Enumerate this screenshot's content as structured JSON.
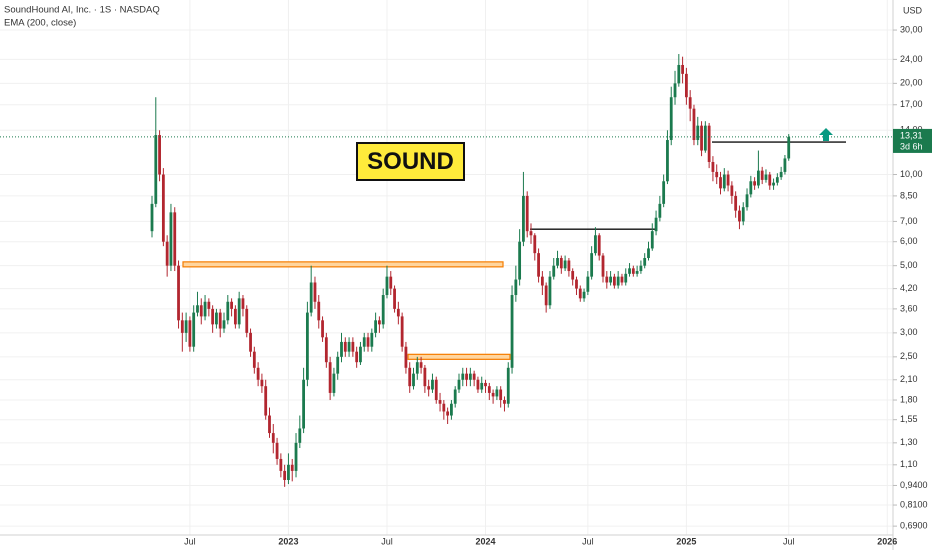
{
  "chart_data": {
    "type": "candlestick",
    "title": "SoundHound AI, Inc. · 1S · NASDAQ",
    "indicator": "EMA (200, close)",
    "currency": "USD",
    "badge": "SOUND",
    "log_scale": true,
    "grid": true,
    "up_color": "#1b7a4e",
    "down_color": "#b2262f",
    "categories": [
      null,
      null,
      null,
      null,
      null,
      null,
      null,
      null,
      null,
      null,
      "Jul",
      null,
      null,
      null,
      null,
      null,
      null,
      null,
      null,
      null,
      null,
      null,
      null,
      null,
      null,
      null,
      null,
      null,
      null,
      null,
      null,
      null,
      null,
      null,
      null,
      null,
      "2023",
      null,
      null,
      null,
      null,
      null,
      null,
      null,
      null,
      null,
      null,
      null,
      null,
      null,
      null,
      null,
      null,
      null,
      null,
      null,
      null,
      null,
      null,
      null,
      null,
      null,
      "Jul",
      null,
      null,
      null,
      null,
      null,
      null,
      null,
      null,
      null,
      null,
      null,
      null,
      null,
      null,
      null,
      null,
      null,
      null,
      null,
      null,
      null,
      null,
      null,
      null,
      null,
      "2024",
      null,
      null,
      null,
      null,
      null,
      null,
      null,
      null,
      null,
      null,
      null,
      null,
      null,
      null,
      null,
      null,
      null,
      null,
      null,
      null,
      null,
      null,
      null,
      null,
      null,
      null,
      "Jul",
      null,
      null,
      null,
      null,
      null,
      null,
      null,
      null,
      null,
      null,
      null,
      null,
      null,
      null,
      null,
      null,
      null,
      null,
      null,
      null,
      null,
      null,
      null,
      null,
      null,
      "2025",
      null,
      null,
      null,
      null,
      null,
      null,
      null,
      null,
      null,
      null,
      null,
      null,
      null,
      null,
      null,
      null,
      null,
      null,
      null,
      null,
      null,
      null,
      null,
      null,
      null,
      null,
      "Jul",
      null,
      null,
      null,
      null,
      null,
      null,
      null,
      null,
      null,
      null,
      null,
      null,
      null,
      null,
      null,
      null,
      null,
      null,
      null,
      null,
      null,
      null,
      null,
      null,
      null,
      "2026",
      null
    ],
    "open": [
      6.5,
      8.0,
      13.5,
      10.0,
      6.0,
      5.0,
      7.5,
      5.0,
      3.3,
      3.0,
      3.3,
      2.7,
      3.5,
      3.7,
      3.4,
      3.8,
      3.6,
      3.2,
      3.5,
      3.1,
      3.3,
      3.8,
      3.6,
      3.2,
      3.9,
      3.6,
      3.0,
      2.6,
      2.3,
      2.1,
      2.0,
      1.6,
      1.4,
      1.3,
      1.15,
      1.05,
      0.98,
      1.1,
      1.05,
      1.3,
      1.45,
      2.1,
      3.5,
      4.4,
      3.8,
      3.3,
      2.9,
      2.4,
      1.9,
      2.2,
      2.5,
      2.8,
      2.6,
      2.8,
      2.6,
      2.4,
      2.7,
      2.9,
      2.7,
      3.0,
      3.3,
      3.2,
      4.0,
      4.6,
      4.2,
      3.6,
      3.4,
      2.7,
      2.3,
      2.0,
      2.2,
      2.4,
      2.3,
      2.0,
      1.95,
      2.1,
      1.8,
      1.75,
      1.65,
      1.6,
      1.75,
      1.95,
      2.1,
      2.2,
      2.1,
      2.2,
      2.1,
      1.95,
      2.05,
      2.0,
      1.9,
      1.85,
      1.95,
      1.8,
      1.75,
      2.3,
      4.0,
      4.5,
      6.0,
      8.5,
      6.5,
      6.3,
      5.5,
      4.6,
      4.3,
      3.7,
      4.6,
      5.0,
      5.3,
      4.9,
      5.2,
      4.8,
      4.5,
      4.2,
      3.9,
      4.1,
      4.6,
      5.5,
      6.3,
      5.4,
      4.6,
      4.4,
      4.6,
      4.3,
      4.6,
      4.4,
      4.7,
      4.9,
      4.7,
      4.8,
      5.0,
      5.3,
      5.7,
      6.5,
      7.2,
      8.0,
      9.5,
      13.0,
      18.0,
      20.0,
      23.0,
      21.5,
      18.0,
      16.5,
      13.0,
      14.5,
      12.0,
      14.5,
      11.0,
      10.2,
      9.8,
      9.0,
      10.0,
      9.2,
      8.5,
      7.6,
      7.0,
      7.8,
      8.6,
      9.5,
      9.2,
      10.3,
      9.6,
      10.0,
      9.2,
      9.4,
      9.8,
      10.2,
      11.3,
      null,
      null,
      null,
      null,
      null,
      null,
      null,
      null,
      null,
      null,
      null,
      null,
      null,
      null,
      null,
      null,
      null,
      null,
      null,
      null,
      null,
      null,
      null,
      null,
      null,
      null,
      null
    ],
    "high": [
      8.5,
      18,
      14,
      10.5,
      6.3,
      8.0,
      7.8,
      5.2,
      3.5,
      3.5,
      3.4,
      3.7,
      4.1,
      3.9,
      4.0,
      3.9,
      3.7,
      3.6,
      3.6,
      3.5,
      4.0,
      3.9,
      3.7,
      4.1,
      4.0,
      3.7,
      3.1,
      2.7,
      2.4,
      2.2,
      2.1,
      1.7,
      1.5,
      1.35,
      1.2,
      1.1,
      1.2,
      1.15,
      1.4,
      1.6,
      2.3,
      3.8,
      5.0,
      4.6,
      4.0,
      3.4,
      3.0,
      2.5,
      2.3,
      2.6,
      3.0,
      2.9,
      2.9,
      2.9,
      2.7,
      2.8,
      3.0,
      3.0,
      3.1,
      3.5,
      3.4,
      4.2,
      5.0,
      4.8,
      4.3,
      3.8,
      3.5,
      2.8,
      2.4,
      2.3,
      2.5,
      2.5,
      2.35,
      2.1,
      2.2,
      2.15,
      1.9,
      1.8,
      1.7,
      1.8,
      2.0,
      2.2,
      2.3,
      2.3,
      2.3,
      2.25,
      2.15,
      2.15,
      2.1,
      2.05,
      1.95,
      2.0,
      2.0,
      1.85,
      2.4,
      4.3,
      5.0,
      6.6,
      10.2,
      8.8,
      6.9,
      6.4,
      5.7,
      4.8,
      4.4,
      4.8,
      5.3,
      5.6,
      5.4,
      5.4,
      5.3,
      4.9,
      4.6,
      4.3,
      4.2,
      4.8,
      5.8,
      6.7,
      6.4,
      5.5,
      4.8,
      4.8,
      4.7,
      4.8,
      4.7,
      4.9,
      5.1,
      5.0,
      5.0,
      5.2,
      5.5,
      6.0,
      6.9,
      7.6,
      8.5,
      10.0,
      14.0,
      19.5,
      22.0,
      25.0,
      24.5,
      22.5,
      19.0,
      17.0,
      15.5,
      15.0,
      15.0,
      14.8,
      11.5,
      10.8,
      10.2,
      10.5,
      10.3,
      9.5,
      8.8,
      7.9,
      8.1,
      9.0,
      9.9,
      9.8,
      12.0,
      10.6,
      10.4,
      10.2,
      9.7,
      10.1,
      10.6,
      11.6,
      13.6,
      null,
      null,
      null,
      null,
      null,
      null,
      null,
      null,
      null,
      null,
      null,
      null,
      null,
      null,
      null,
      null,
      null,
      null,
      null,
      null,
      null,
      null,
      null,
      null,
      null,
      null,
      null
    ],
    "low": [
      6.2,
      7.8,
      9.5,
      5.8,
      4.6,
      4.8,
      4.8,
      3.1,
      2.6,
      2.8,
      2.6,
      2.6,
      3.4,
      3.2,
      3.3,
      3.4,
      3.0,
      3.1,
      2.9,
      3.0,
      3.2,
      3.4,
      3.1,
      3.1,
      3.4,
      2.9,
      2.5,
      2.2,
      2.0,
      1.9,
      1.55,
      1.35,
      1.2,
      1.1,
      1.0,
      0.93,
      0.95,
      0.97,
      1.0,
      1.25,
      1.4,
      2.0,
      3.4,
      3.6,
      3.1,
      2.8,
      2.3,
      1.8,
      1.85,
      2.1,
      2.4,
      2.5,
      2.5,
      2.5,
      2.3,
      2.35,
      2.6,
      2.6,
      2.6,
      2.9,
      3.0,
      3.1,
      3.9,
      4.0,
      3.5,
      3.2,
      2.6,
      2.2,
      1.9,
      1.95,
      2.1,
      2.2,
      1.9,
      1.85,
      1.9,
      1.75,
      1.65,
      1.55,
      1.5,
      1.55,
      1.7,
      1.9,
      2.0,
      2.0,
      2.0,
      2.0,
      1.9,
      1.9,
      1.9,
      1.8,
      1.75,
      1.8,
      1.7,
      1.65,
      1.7,
      2.2,
      3.8,
      4.3,
      5.8,
      6.2,
      5.9,
      5.2,
      4.4,
      4.0,
      3.5,
      3.6,
      4.5,
      4.9,
      4.7,
      4.8,
      4.6,
      4.3,
      4.0,
      3.8,
      3.8,
      4.0,
      4.5,
      5.4,
      5.2,
      4.4,
      4.2,
      4.3,
      4.2,
      4.2,
      4.3,
      4.3,
      4.6,
      4.6,
      4.6,
      4.7,
      4.9,
      5.2,
      5.6,
      6.3,
      7.0,
      7.8,
      9.3,
      12.5,
      17.0,
      19.5,
      20.0,
      17.0,
      15.0,
      12.5,
      12.5,
      11.5,
      11.8,
      10.5,
      9.5,
      9.3,
      8.6,
      8.8,
      8.8,
      8.0,
      7.2,
      6.6,
      6.8,
      7.6,
      8.4,
      8.9,
      9.0,
      9.3,
      9.4,
      8.9,
      8.9,
      9.2,
      9.6,
      10.0,
      11.1,
      null,
      null,
      null,
      null,
      null,
      null,
      null,
      null,
      null,
      null,
      null,
      null,
      null,
      null,
      null,
      null,
      null,
      null,
      null,
      null,
      null,
      null,
      null,
      null,
      null,
      null,
      null
    ],
    "close": [
      8.0,
      13.5,
      10.0,
      6.0,
      5.0,
      7.5,
      5.0,
      3.3,
      3.0,
      3.3,
      2.7,
      3.5,
      3.7,
      3.4,
      3.8,
      3.6,
      3.2,
      3.5,
      3.1,
      3.3,
      3.8,
      3.6,
      3.2,
      3.9,
      3.6,
      3.0,
      2.6,
      2.3,
      2.1,
      2.0,
      1.6,
      1.4,
      1.3,
      1.15,
      1.05,
      0.98,
      1.1,
      1.05,
      1.3,
      1.45,
      2.1,
      3.5,
      4.4,
      3.8,
      3.3,
      2.9,
      2.4,
      1.9,
      2.2,
      2.5,
      2.8,
      2.6,
      2.8,
      2.6,
      2.4,
      2.7,
      2.9,
      2.7,
      3.0,
      3.3,
      3.2,
      4.0,
      4.6,
      4.2,
      3.6,
      3.4,
      2.7,
      2.3,
      2.0,
      2.2,
      2.4,
      2.3,
      2.0,
      1.95,
      2.1,
      1.8,
      1.75,
      1.65,
      1.6,
      1.75,
      1.95,
      2.1,
      2.2,
      2.1,
      2.2,
      2.1,
      1.95,
      2.05,
      2.0,
      1.9,
      1.85,
      1.95,
      1.8,
      1.75,
      2.3,
      4.0,
      4.5,
      6.0,
      8.5,
      6.5,
      6.3,
      5.5,
      4.6,
      4.3,
      3.7,
      4.6,
      5.0,
      5.3,
      4.9,
      5.2,
      4.8,
      4.5,
      4.2,
      3.9,
      4.1,
      4.6,
      5.5,
      6.3,
      5.4,
      4.6,
      4.4,
      4.6,
      4.3,
      4.6,
      4.4,
      4.7,
      4.9,
      4.7,
      4.8,
      5.0,
      5.3,
      5.7,
      6.5,
      7.2,
      8.0,
      9.5,
      13.0,
      18.0,
      20.0,
      23.0,
      21.5,
      18.0,
      16.5,
      13.0,
      14.5,
      12.0,
      14.5,
      11.0,
      10.2,
      9.8,
      9.0,
      10.0,
      9.2,
      8.5,
      7.6,
      7.0,
      7.8,
      8.6,
      9.5,
      9.2,
      10.3,
      9.6,
      10.0,
      9.2,
      9.4,
      9.8,
      10.2,
      11.3,
      13.31,
      null,
      null,
      null,
      null,
      null,
      null,
      null,
      null,
      null,
      null,
      null,
      null,
      null,
      null,
      null,
      null,
      null,
      null,
      null,
      null,
      null,
      null,
      null,
      null,
      null,
      null,
      null
    ],
    "last_price": 13.31,
    "last_price_label": "13,31",
    "countdown": "3d 6h",
    "levels": [
      5.05,
      2.5,
      6.6,
      12.8
    ],
    "ylim": [
      0.645,
      37.7
    ],
    "yticks": [
      {
        "value": 30,
        "label": "30,00"
      },
      {
        "value": 24,
        "label": "24,00"
      },
      {
        "value": 20,
        "label": "20,00"
      },
      {
        "value": 17,
        "label": "17,00"
      },
      {
        "value": 14,
        "label": "14,00"
      },
      {
        "value": 10,
        "label": "10,00"
      },
      {
        "value": 8.5,
        "label": "8,50"
      },
      {
        "value": 7,
        "label": "7,00"
      },
      {
        "value": 6,
        "label": "6,00"
      },
      {
        "value": 5,
        "label": "5,00"
      },
      {
        "value": 4.2,
        "label": "4,20"
      },
      {
        "value": 3.6,
        "label": "3,60"
      },
      {
        "value": 3,
        "label": "3,00"
      },
      {
        "value": 2.5,
        "label": "2,50"
      },
      {
        "value": 2.1,
        "label": "2,10"
      },
      {
        "value": 1.8,
        "label": "1,80"
      },
      {
        "value": 1.55,
        "label": "1,55"
      },
      {
        "value": 1.3,
        "label": "1,30"
      },
      {
        "value": 1.1,
        "label": "1,10"
      },
      {
        "value": 0.94,
        "label": "0,9400"
      },
      {
        "value": 0.81,
        "label": "0,8100"
      },
      {
        "value": 0.69,
        "label": "0,6900"
      }
    ]
  }
}
